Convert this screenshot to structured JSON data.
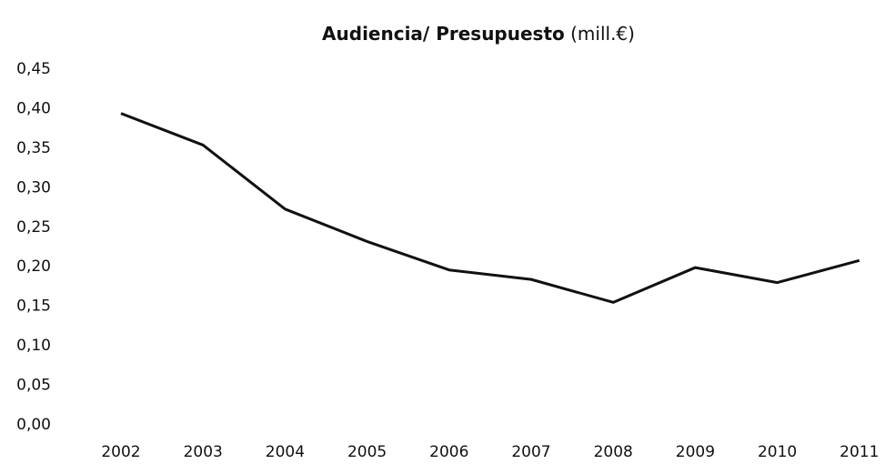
{
  "chart_data": {
    "type": "line",
    "title": "Audiencia/ Presupuesto",
    "subtitle": "(mill.€)",
    "categories": [
      "2002",
      "2003",
      "2004",
      "2005",
      "2006",
      "2007",
      "2008",
      "2009",
      "2010",
      "2011"
    ],
    "series": [
      {
        "name": "Audiencia/ Presupuesto",
        "color": "#111111",
        "values": [
          0.394,
          0.354,
          0.273,
          0.232,
          0.196,
          0.184,
          0.155,
          0.199,
          0.18,
          0.208
        ]
      }
    ],
    "ylim": [
      0,
      0.45
    ],
    "yticks": [
      {
        "value": 0,
        "label": "0,00"
      },
      {
        "value": 0.05,
        "label": "0,05"
      },
      {
        "value": 0.1,
        "label": "0,10"
      },
      {
        "value": 0.15,
        "label": "0,15"
      },
      {
        "value": 0.2,
        "label": "0,20"
      },
      {
        "value": 0.25,
        "label": "0,25"
      },
      {
        "value": 0.3,
        "label": "0,30"
      },
      {
        "value": 0.35,
        "label": "0,35"
      },
      {
        "value": 0.4,
        "label": "0,40"
      },
      {
        "value": 0.45,
        "label": "0,45"
      }
    ],
    "grid": false
  }
}
